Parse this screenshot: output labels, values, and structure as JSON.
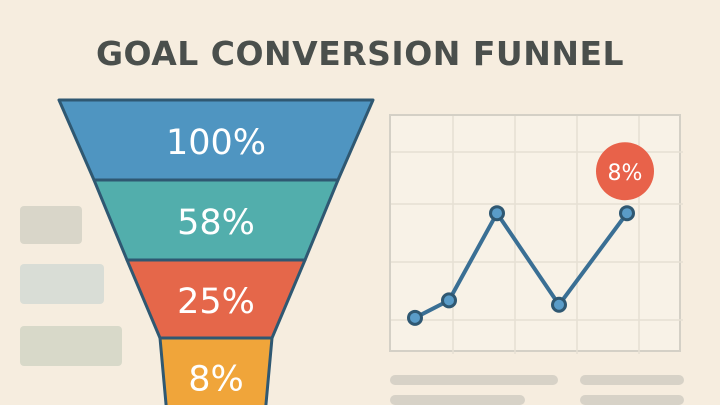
{
  "title": "GOAL CONVERSION FUNNEL",
  "colors": {
    "background": "#f6eddf",
    "title": "#4a4f4c",
    "stage_1": "#4f95c1",
    "stage_2": "#52aeac",
    "stage_3": "#e5674a",
    "stage_4": "#f0a53a",
    "outline": "#2f5872",
    "line": "#3a6f94",
    "highlight": "#e8624a"
  },
  "chart_data": [
    {
      "type": "funnel",
      "stages": [
        {
          "label": "100%",
          "value": 100,
          "color": "#4f95c1"
        },
        {
          "label": "58%",
          "value": 58,
          "color": "#52aeac"
        },
        {
          "label": "25%",
          "value": 25,
          "color": "#e5674a"
        },
        {
          "label": "8%",
          "value": 8,
          "color": "#f0a53a"
        }
      ]
    },
    {
      "type": "line",
      "grid": true,
      "points": [
        0.2,
        1.0,
        5.0,
        0.8,
        5.0
      ],
      "ylim": [
        -1,
        9
      ],
      "callout": {
        "label": "8%"
      }
    }
  ]
}
